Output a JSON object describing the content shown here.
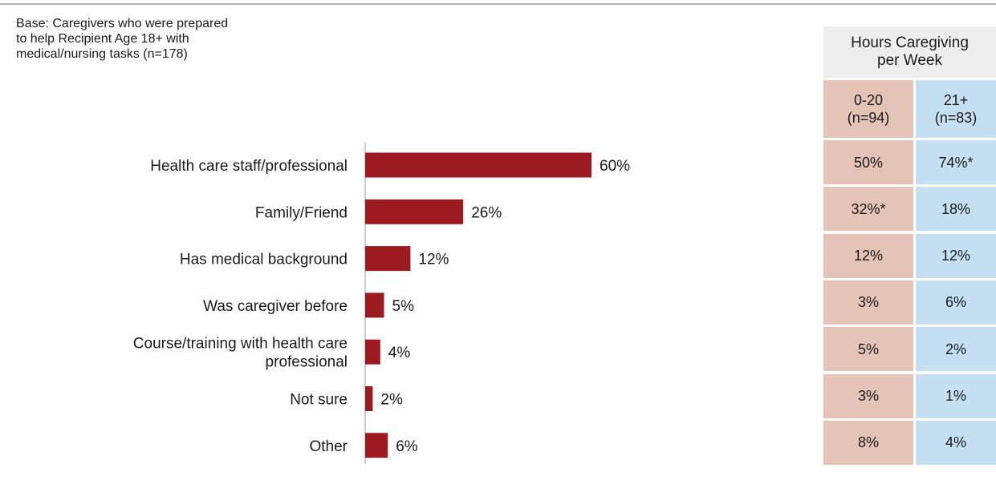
{
  "base_note": "Base: Caregivers who were prepared\nto help Recipient Age 18+ with\nmedical/nursing tasks (n=178)",
  "colors": {
    "bar": "#9b1b20",
    "col_a_bg": "#e5c4b8",
    "col_b_bg": "#c6e0f3",
    "header_bg": "#eeeeee",
    "axis": "#9e9e9e"
  },
  "chart_data": {
    "type": "bar",
    "orientation": "horizontal",
    "categories": [
      "Health care staff/professional",
      "Family/Friend",
      "Has medical background",
      "Was caregiver before",
      "Course/training with health care\nprofessional",
      "Not sure",
      "Other"
    ],
    "values": [
      60,
      26,
      12,
      5,
      4,
      2,
      6
    ],
    "data_labels": [
      "60%",
      "26%",
      "12%",
      "5%",
      "4%",
      "2%",
      "6%"
    ],
    "unit": "%",
    "xlim": [
      0,
      100
    ],
    "grid": false,
    "legend": "none"
  },
  "side_table": {
    "title": "Hours Caregiving\nper Week",
    "columns": [
      "0-20\n(n=94)",
      "21+\n(n=83)"
    ],
    "rows": [
      [
        "50%",
        "74%*"
      ],
      [
        "32%*",
        "18%"
      ],
      [
        "12%",
        "12%"
      ],
      [
        "3%",
        "6%"
      ],
      [
        "5%",
        "2%"
      ],
      [
        "3%",
        "1%"
      ],
      [
        "8%",
        "4%"
      ]
    ]
  }
}
